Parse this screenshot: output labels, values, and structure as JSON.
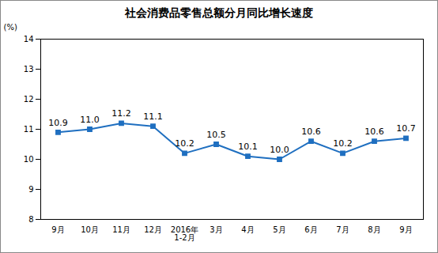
{
  "chart_data": {
    "type": "line",
    "title": "社会消费品零售总额分月同比增长速度",
    "y_label": "(%)",
    "categories": [
      "9月",
      "10月",
      "11月",
      "12月",
      "2016年\n1-2月",
      "3月",
      "4月",
      "5月",
      "6月",
      "7月",
      "8月",
      "9月"
    ],
    "values": [
      10.9,
      11.0,
      11.2,
      11.1,
      10.2,
      10.5,
      10.1,
      10.0,
      10.6,
      10.2,
      10.6,
      10.7
    ],
    "value_labels": [
      "10.9",
      "11.0",
      "11.2",
      "11.1",
      "10.2",
      "10.5",
      "10.1",
      "10.0",
      "10.6",
      "10.2",
      "10.6",
      "10.7"
    ],
    "color": "#1f6fc0",
    "marker": "square",
    "ylim": [
      8,
      14
    ],
    "yticks": [
      8,
      9,
      10,
      11,
      12,
      13,
      14
    ],
    "grid": false,
    "data_labels": true
  }
}
